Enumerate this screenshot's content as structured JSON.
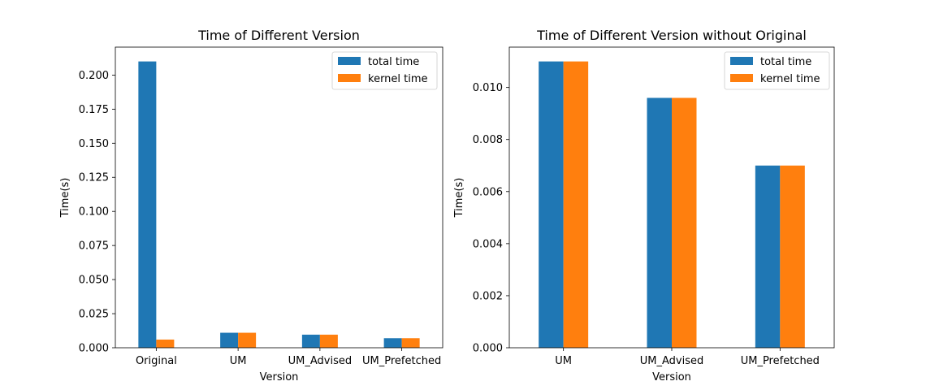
{
  "chart_data": [
    {
      "type": "bar",
      "title": "Time of Different Version",
      "xlabel": "Version",
      "ylabel": "Time(s)",
      "categories": [
        "Original",
        "UM",
        "UM_Advised",
        "UM_Prefetched"
      ],
      "series": [
        {
          "name": "total time",
          "values": [
            0.21,
            0.011,
            0.0096,
            0.007
          ]
        },
        {
          "name": "kernel time",
          "values": [
            0.006,
            0.011,
            0.0096,
            0.007
          ]
        }
      ],
      "ylim": [
        0,
        0.2205
      ],
      "yticks": [
        "0.000",
        "0.025",
        "0.050",
        "0.075",
        "0.100",
        "0.125",
        "0.150",
        "0.175",
        "0.200"
      ],
      "legend": "top-right",
      "grid": false
    },
    {
      "type": "bar",
      "title": "Time of Different Version without Original",
      "xlabel": "Version",
      "ylabel": "Time(s)",
      "categories": [
        "UM",
        "UM_Advised",
        "UM_Prefetched"
      ],
      "series": [
        {
          "name": "total time",
          "values": [
            0.011,
            0.0096,
            0.007
          ]
        },
        {
          "name": "kernel time",
          "values": [
            0.011,
            0.0096,
            0.007
          ]
        }
      ],
      "ylim": [
        0,
        0.01155
      ],
      "yticks": [
        "0.000",
        "0.002",
        "0.004",
        "0.006",
        "0.008",
        "0.010"
      ],
      "legend": "top-right",
      "grid": false
    }
  ],
  "colors": {
    "total time": "#1f77b4",
    "kernel time": "#ff7f0e"
  }
}
